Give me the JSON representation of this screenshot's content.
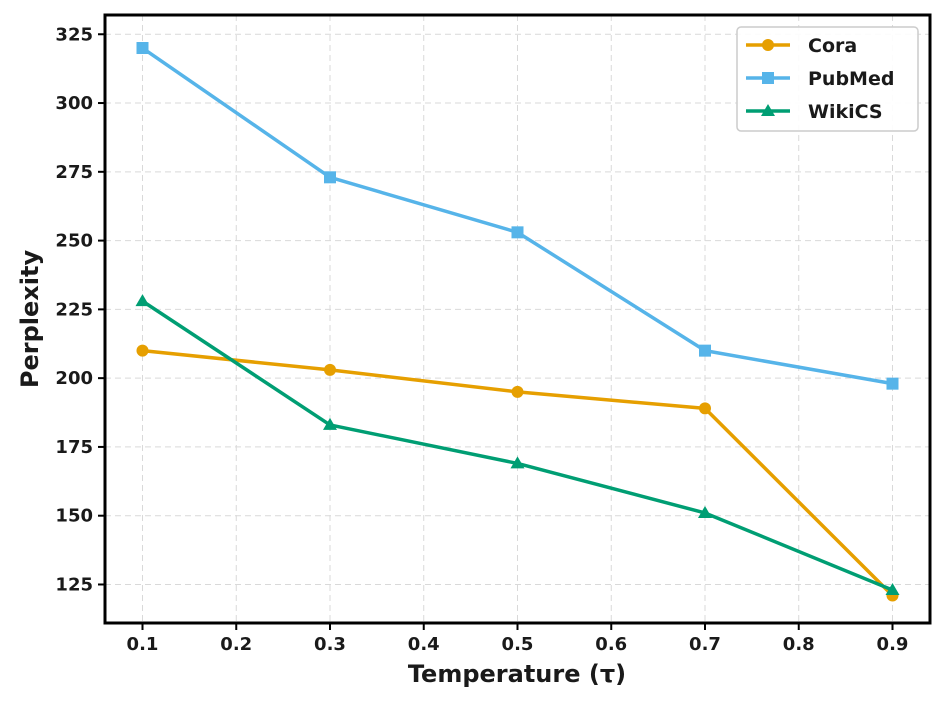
{
  "chart_data": {
    "type": "line",
    "title": "",
    "xlabel": "Temperature (τ)",
    "ylabel": "Perplexity",
    "x": [
      0.1,
      0.3,
      0.5,
      0.7,
      0.9
    ],
    "xlim": [
      0.06,
      0.94
    ],
    "ylim": [
      111,
      332
    ],
    "xticks": [
      0.1,
      0.2,
      0.3,
      0.4,
      0.5,
      0.6,
      0.7,
      0.8,
      0.9
    ],
    "xtick_labels": [
      "0.1",
      "0.2",
      "0.3",
      "0.4",
      "0.5",
      "0.6",
      "0.7",
      "0.8",
      "0.9"
    ],
    "yticks": [
      125,
      150,
      175,
      200,
      225,
      250,
      275,
      300,
      325
    ],
    "ytick_labels": [
      "125",
      "150",
      "175",
      "200",
      "225",
      "250",
      "275",
      "300",
      "325"
    ],
    "grid": true,
    "legend_position": "top-right",
    "series": [
      {
        "name": "Cora",
        "color": "#E69F00",
        "marker": "circle",
        "values": [
          210,
          203,
          195,
          189,
          121
        ]
      },
      {
        "name": "PubMed",
        "color": "#56B4E9",
        "marker": "square",
        "values": [
          320,
          273,
          253,
          210,
          198
        ]
      },
      {
        "name": "WikiCS",
        "color": "#009E73",
        "marker": "triangle",
        "values": [
          228,
          183,
          169,
          151,
          123
        ]
      }
    ]
  }
}
